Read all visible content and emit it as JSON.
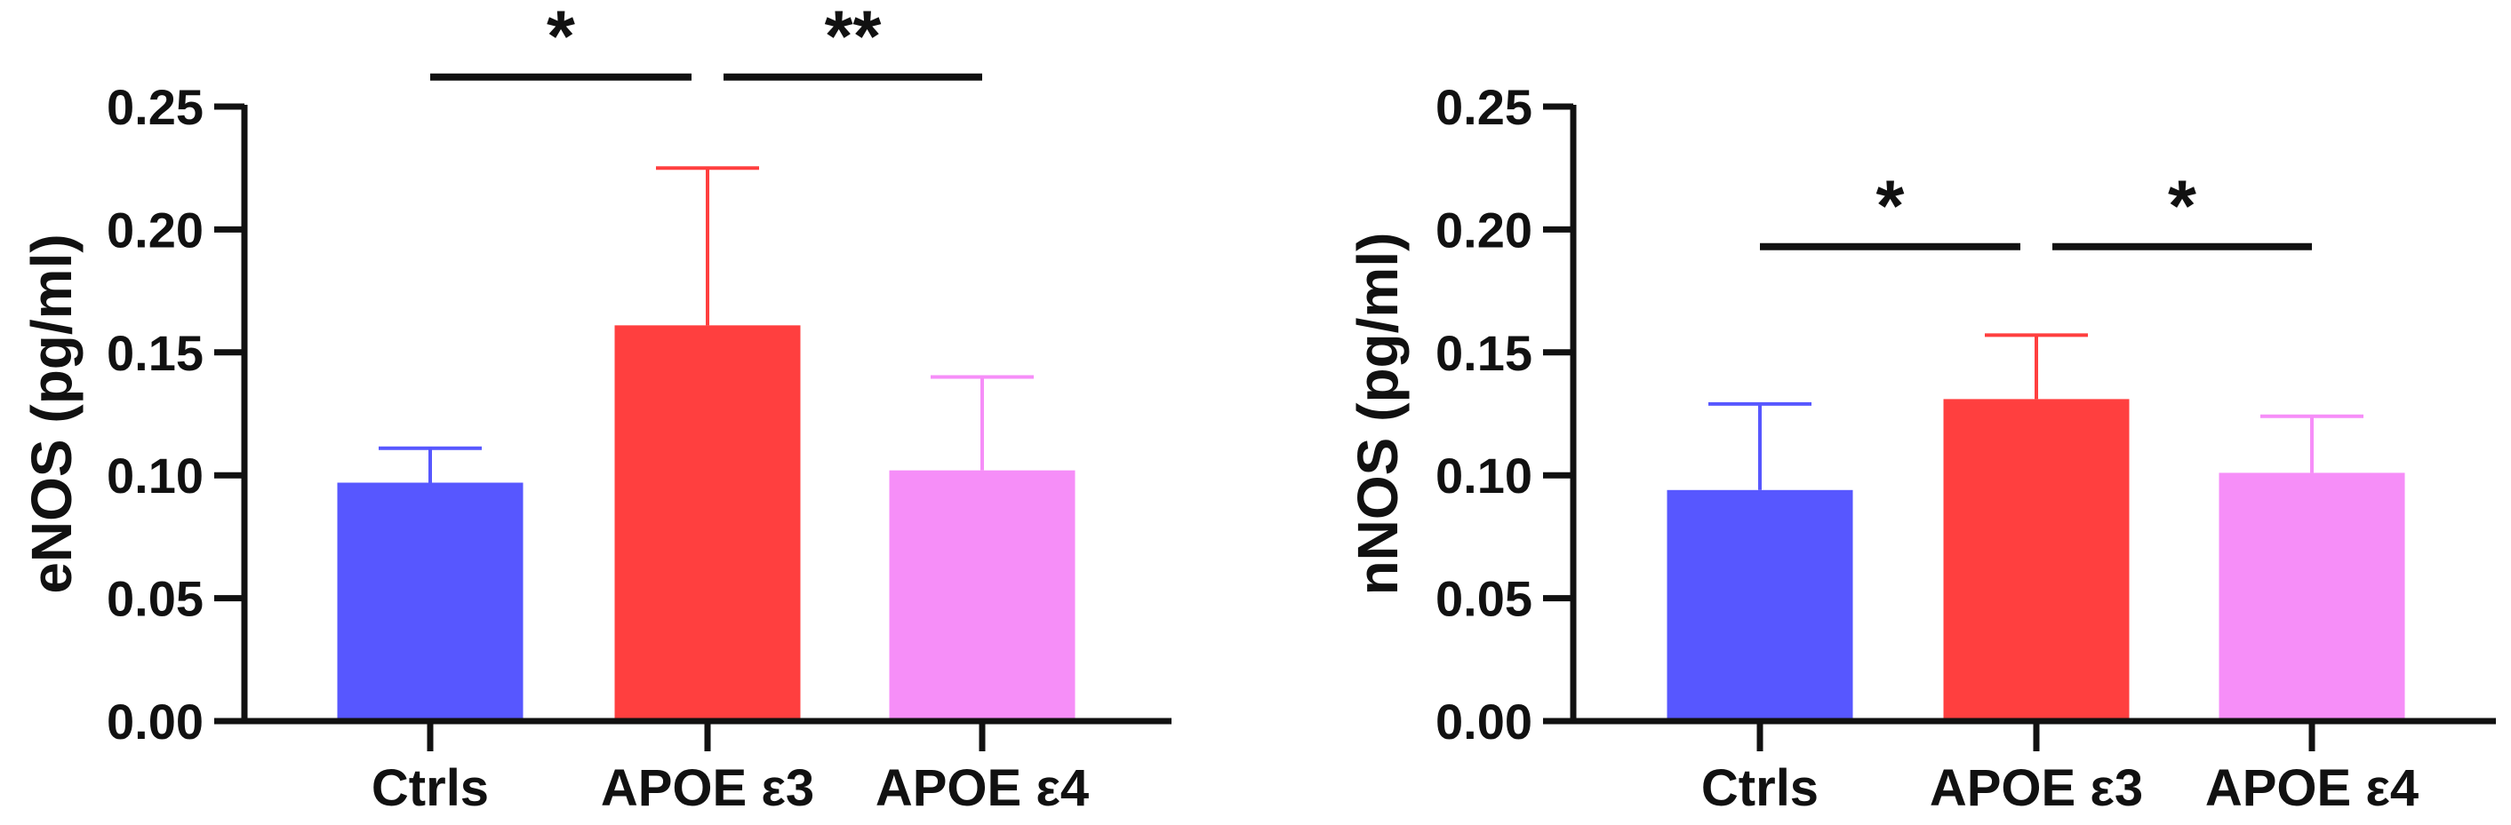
{
  "chart_data": [
    {
      "type": "bar",
      "categories": [
        "Ctrls",
        "APOE ε3",
        "APOE ε4"
      ],
      "values": [
        0.097,
        0.161,
        0.102
      ],
      "error_upper": [
        0.111,
        0.225,
        0.14
      ],
      "colors": [
        "#5757FF",
        "#FF3F3F",
        "#F68EF8"
      ],
      "ylabel": "eNOS (pg/ml)",
      "ylim": [
        0,
        0.25
      ],
      "yticks": [
        "0.00",
        "0.05",
        "0.10",
        "0.15",
        "0.20",
        "0.25"
      ],
      "significance": [
        {
          "from": 0,
          "to": 1,
          "label": "*",
          "y": 0.262
        },
        {
          "from": 1,
          "to": 2,
          "label": "**",
          "y": 0.262
        }
      ]
    },
    {
      "type": "bar",
      "categories": [
        "Ctrls",
        "APOE ε3",
        "APOE ε4"
      ],
      "values": [
        0.094,
        0.131,
        0.101
      ],
      "error_upper": [
        0.129,
        0.157,
        0.124
      ],
      "colors": [
        "#5757FF",
        "#FF3F3F",
        "#F68EF8"
      ],
      "ylabel": "nNOS (pg/ml)",
      "ylim": [
        0,
        0.25
      ],
      "yticks": [
        "0.00",
        "0.05",
        "0.10",
        "0.15",
        "0.20",
        "0.25"
      ],
      "significance": [
        {
          "from": 0,
          "to": 1,
          "label": "*",
          "y": 0.193
        },
        {
          "from": 1,
          "to": 2,
          "label": "*",
          "y": 0.193
        }
      ]
    }
  ]
}
